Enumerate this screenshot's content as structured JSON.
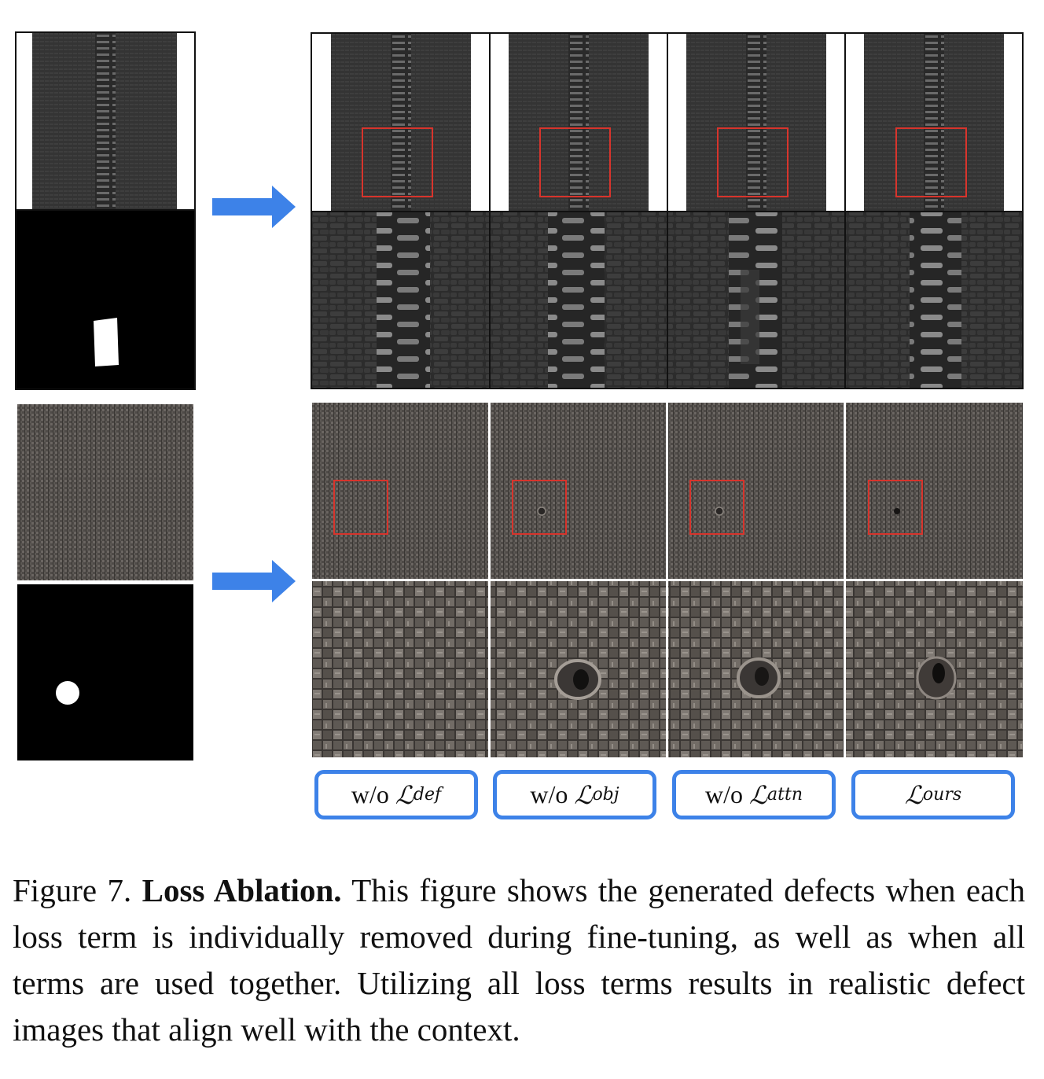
{
  "figure": {
    "caption_prefix": "Figure 7.",
    "caption_bold": "Loss Ablation.",
    "caption_text": "This figure shows the generated defects when each loss term is individually removed during fine-tuning, as well as when all terms are used together. Utilizing all loss terms results in realistic defect images that align well with the context."
  },
  "labels": [
    {
      "prefix": "w/o ",
      "symbol": "ℒ",
      "sub": "def"
    },
    {
      "prefix": "w/o ",
      "symbol": "ℒ",
      "sub": "obj"
    },
    {
      "prefix": "w/o ",
      "symbol": "ℒ",
      "sub": "attn"
    },
    {
      "prefix": "",
      "symbol": "ℒ",
      "sub": "ours"
    }
  ],
  "colors": {
    "arrow": "#3d82e8",
    "highlight_box": "#d8342c",
    "label_border": "#3d82e8"
  }
}
